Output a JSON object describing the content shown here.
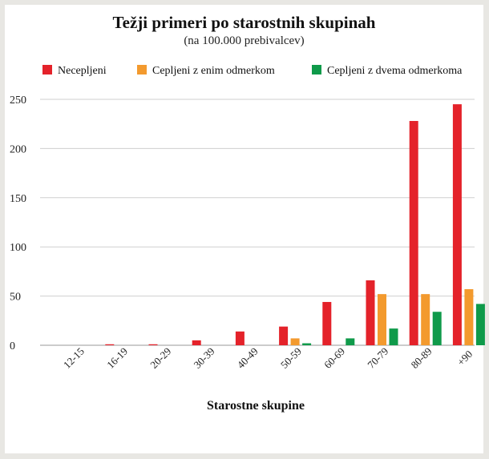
{
  "chart_data": {
    "type": "bar",
    "title": "Težji primeri po starostnih skupinah",
    "subtitle": "(na 100.000 prebivalcev)",
    "xlabel": "Starostne skupine",
    "ylabel": "",
    "ylim": [
      0,
      250
    ],
    "yticks": [
      0,
      50,
      100,
      150,
      200,
      250
    ],
    "grid": "horizontal",
    "legend_position": "top",
    "categories": [
      "12-15",
      "16-19",
      "20-29",
      "30-39",
      "40-49",
      "50-59",
      "60-69",
      "70-79",
      "80-89",
      "+90"
    ],
    "series": [
      {
        "name": "Necepljeni",
        "color": "#e4222a",
        "values": [
          0,
          1,
          1,
          5,
          14,
          19,
          44,
          66,
          228,
          245
        ]
      },
      {
        "name": "Cepljeni z enim odmerkom",
        "color": "#f39a2e",
        "values": [
          0,
          0,
          0,
          0,
          0,
          7,
          0,
          52,
          52,
          57
        ]
      },
      {
        "name": "Cepljeni z dvema odmerkoma",
        "color": "#0f9a4a",
        "values": [
          0,
          0,
          0,
          0,
          0,
          2,
          7,
          17,
          34,
          42
        ]
      }
    ]
  }
}
